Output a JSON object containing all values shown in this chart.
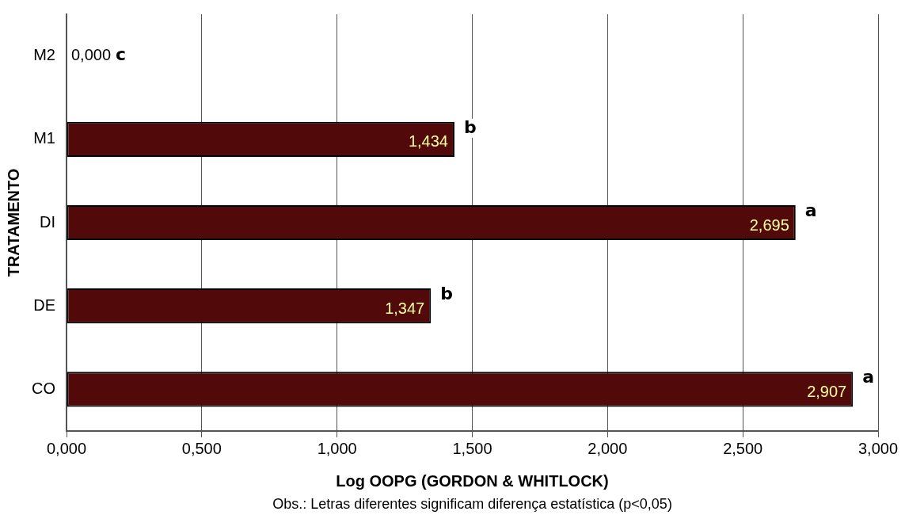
{
  "chart_data": {
    "type": "bar",
    "orientation": "horizontal",
    "xlabel": "Log OOPG (GORDON & WHITLOCK)",
    "ylabel": "TRATAMENTO",
    "categories": [
      "M2",
      "M1",
      "DI",
      "DE",
      "CO"
    ],
    "values": [
      0,
      1.434,
      2.695,
      1.347,
      2.907
    ],
    "value_labels": [
      "0,000",
      "1,434",
      "2,695",
      "1,347",
      "2,907"
    ],
    "color": "#520909",
    "xlim": [
      0,
      3
    ],
    "xticks": [
      {
        "value": 0,
        "label": "0,000"
      },
      {
        "value": 0.5,
        "label": "0,500"
      },
      {
        "value": 1,
        "label": "1,000"
      },
      {
        "value": 1.5,
        "label": "1,500"
      },
      {
        "value": 2,
        "label": "2,000"
      },
      {
        "value": 2.5,
        "label": "2,500"
      },
      {
        "value": 3,
        "label": "3,000"
      }
    ],
    "grid": "x",
    "annotations": [
      {
        "text": "c",
        "x": 0,
        "y": "M2"
      },
      {
        "text": "b",
        "x": 1.434,
        "y": "M1"
      },
      {
        "text": "a",
        "x": 2.695,
        "y": "DI"
      },
      {
        "text": "b",
        "x": 1.347,
        "y": "DE"
      },
      {
        "text": "a",
        "x": 2.907,
        "y": "CO"
      },
      "Obs.: Letras diferentes significam diferença estatística (p<0,05)"
    ]
  }
}
